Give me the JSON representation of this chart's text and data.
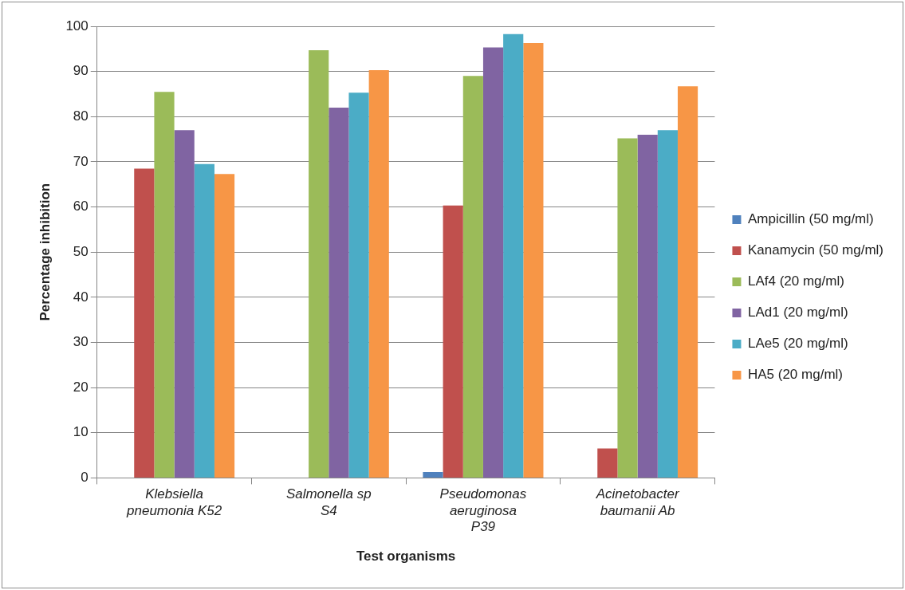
{
  "chart_data": {
    "type": "bar",
    "xlabel": "Test organisms",
    "ylabel": "Percentage inhibition",
    "categories": [
      "Klebsiella pneumonia K52",
      "Salmonella sp S4",
      "Pseudomonas aeruginosa P39",
      "Acinetobacter baumanii Ab"
    ],
    "series": [
      {
        "name": "Ampicillin (50 mg/ml)",
        "color": "#4f81bd",
        "values": [
          0,
          0,
          1.3,
          0
        ]
      },
      {
        "name": "Kanamycin (50 mg/ml)",
        "color": "#c0504d",
        "values": [
          68.5,
          0,
          60.3,
          6.5
        ]
      },
      {
        "name": "LAf4 (20 mg/ml)",
        "color": "#9bbb59",
        "values": [
          85.5,
          94.7,
          89,
          75.2
        ]
      },
      {
        "name": "LAd1 (20 mg/ml)",
        "color": "#8064a2",
        "values": [
          77,
          82,
          95.3,
          76
        ]
      },
      {
        "name": "LAe5 (20 mg/ml)",
        "color": "#4bacc6",
        "values": [
          69.5,
          85.3,
          98.3,
          77
        ]
      },
      {
        "name": "HA5 (20 mg/ml)",
        "color": "#f79646",
        "values": [
          67.3,
          90.3,
          96.3,
          86.7
        ]
      }
    ],
    "ylim": [
      0,
      100
    ],
    "yticks": [
      0,
      10,
      20,
      30,
      40,
      50,
      60,
      70,
      80,
      90,
      100
    ],
    "grid": "y",
    "legend": "right"
  }
}
